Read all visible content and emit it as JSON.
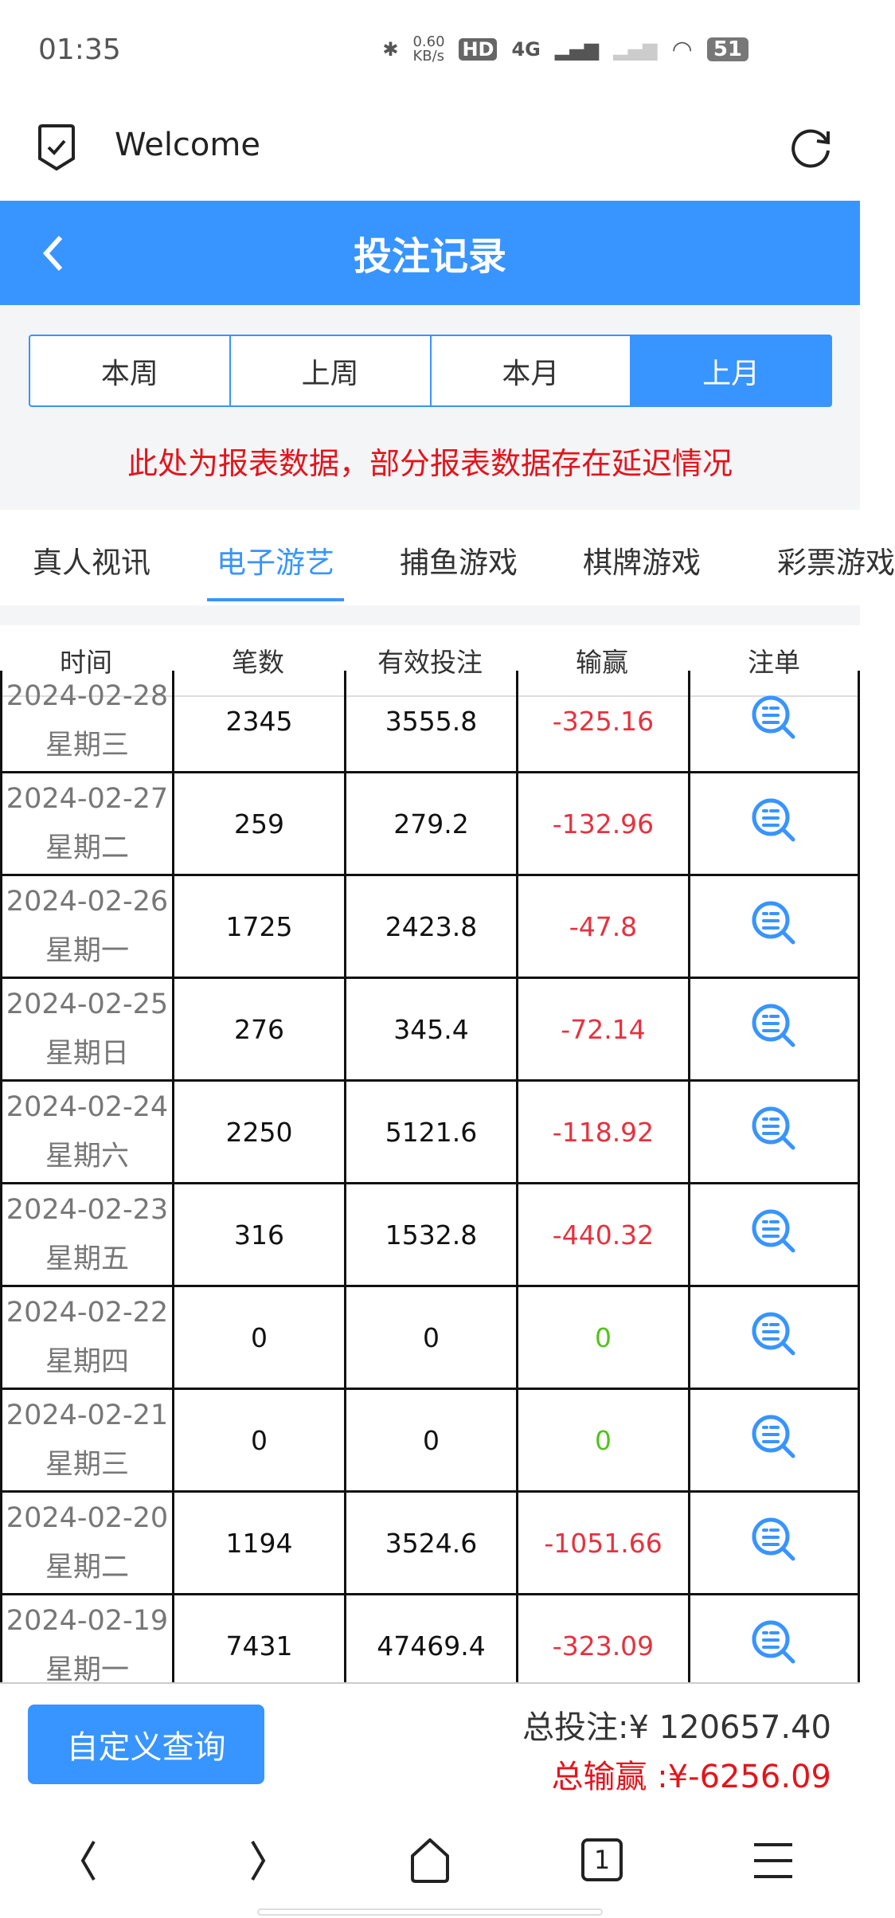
{
  "status_bar": {
    "time": "01:35",
    "net_speed": "0.60 KB/s",
    "network": "4G",
    "battery": "51"
  },
  "browser": {
    "title": "Welcome"
  },
  "header": {
    "title": "投注记录"
  },
  "period_tabs": [
    {
      "label": "本周"
    },
    {
      "label": "上周"
    },
    {
      "label": "本月"
    },
    {
      "label": "上月",
      "active": true
    }
  ],
  "notice": "此处为报表数据，部分报表数据存在延迟情况",
  "categories": [
    {
      "label": "真人视讯"
    },
    {
      "label": "电子游艺",
      "active": true
    },
    {
      "label": "捕鱼游戏"
    },
    {
      "label": "棋牌游戏"
    },
    {
      "label": "彩票游戏"
    }
  ],
  "table": {
    "headers": [
      "时间",
      "笔数",
      "有效投注",
      "输赢",
      "注单"
    ],
    "rows": [
      {
        "date": "2024-02-28",
        "weekday": "星期三",
        "count": "2345",
        "valid_bet": "3555.8",
        "win_loss": "-325.16"
      },
      {
        "date": "2024-02-27",
        "weekday": "星期二",
        "count": "259",
        "valid_bet": "279.2",
        "win_loss": "-132.96"
      },
      {
        "date": "2024-02-26",
        "weekday": "星期一",
        "count": "1725",
        "valid_bet": "2423.8",
        "win_loss": "-47.8"
      },
      {
        "date": "2024-02-25",
        "weekday": "星期日",
        "count": "276",
        "valid_bet": "345.4",
        "win_loss": "-72.14"
      },
      {
        "date": "2024-02-24",
        "weekday": "星期六",
        "count": "2250",
        "valid_bet": "5121.6",
        "win_loss": "-118.92"
      },
      {
        "date": "2024-02-23",
        "weekday": "星期五",
        "count": "316",
        "valid_bet": "1532.8",
        "win_loss": "-440.32"
      },
      {
        "date": "2024-02-22",
        "weekday": "星期四",
        "count": "0",
        "valid_bet": "0",
        "win_loss": "0"
      },
      {
        "date": "2024-02-21",
        "weekday": "星期三",
        "count": "0",
        "valid_bet": "0",
        "win_loss": "0"
      },
      {
        "date": "2024-02-20",
        "weekday": "星期二",
        "count": "1194",
        "valid_bet": "3524.6",
        "win_loss": "-1051.66"
      },
      {
        "date": "2024-02-19",
        "weekday": "星期一",
        "count": "7431",
        "valid_bet": "47469.4",
        "win_loss": "-323.09"
      }
    ]
  },
  "footer": {
    "custom_query": "自定义查询",
    "total_bet": "总投注:¥ 120657.40",
    "total_win": "总输赢 :¥-6256.09"
  },
  "nav": {
    "tab_count": "1"
  },
  "colors": {
    "accent": "#3894ff",
    "loss": "#e5323f",
    "zero": "#52c41a",
    "notice": "#e3141c"
  }
}
